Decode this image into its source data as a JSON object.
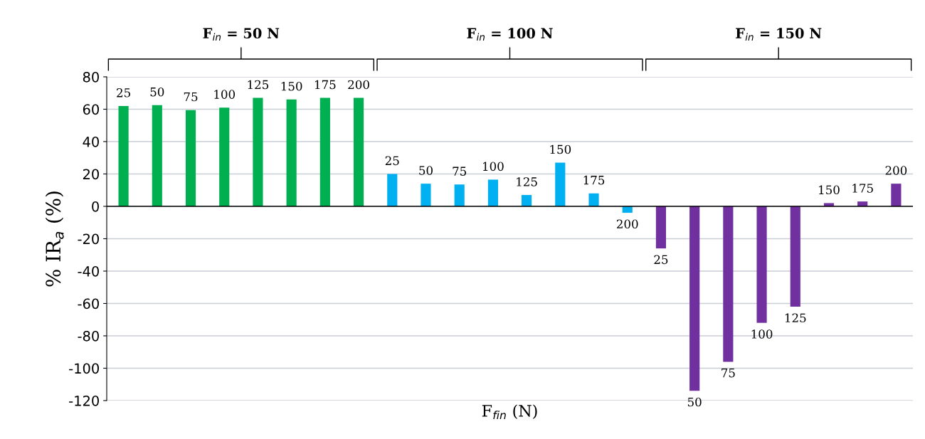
{
  "chart_data": {
    "type": "bar",
    "xlabel": "F$_{fin}$ (N)",
    "ylabel": "% IR$_{a}$ (%)",
    "categories": [
      "25",
      "50",
      "75",
      "100",
      "125",
      "150",
      "175",
      "200",
      "25",
      "50",
      "75",
      "100",
      "125",
      "150",
      "175",
      "200",
      "25",
      "50",
      "75",
      "100",
      "125",
      "150",
      "175",
      "200"
    ],
    "values": [
      62,
      62.5,
      59.5,
      61,
      67,
      66,
      67,
      67,
      20,
      14,
      13.5,
      16.5,
      7,
      27,
      8,
      -4,
      -26,
      -114,
      -96,
      -72,
      -62,
      2,
      3,
      14
    ],
    "colors": [
      "#00b050",
      "#00b050",
      "#00b050",
      "#00b050",
      "#00b050",
      "#00b050",
      "#00b050",
      "#00b050",
      "#00b0f0",
      "#00b0f0",
      "#00b0f0",
      "#00b0f0",
      "#00b0f0",
      "#00b0f0",
      "#00b0f0",
      "#00b0f0",
      "#7030a0",
      "#7030a0",
      "#7030a0",
      "#7030a0",
      "#7030a0",
      "#7030a0",
      "#7030a0",
      "#7030a0"
    ],
    "annotations": [
      "F$_{in}$ = 50 N",
      "F$_{in}$ = 100 N",
      "F$_{in}$ = 150 N"
    ],
    "ylim": [
      -120,
      80
    ],
    "yticks": [
      -120,
      -100,
      -80,
      -60,
      -40,
      -20,
      0,
      20,
      40,
      60,
      80
    ],
    "grid": "y"
  }
}
